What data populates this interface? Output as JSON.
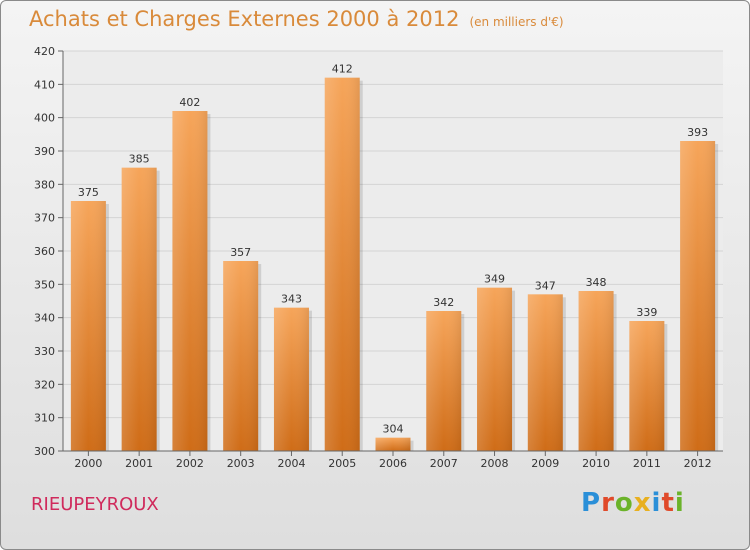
{
  "header": {
    "title": "Achats et Charges Externes 2000 à 2012",
    "subtitle": "(en milliers d'€)"
  },
  "footer": {
    "commune": "RIEUPEYROUX",
    "logo_letters": [
      "P",
      "r",
      "o",
      "x",
      "i",
      "t",
      "i"
    ],
    "logo_colors": [
      "#2a8fd8",
      "#e04a2a",
      "#6bb32a",
      "#e8b020",
      "#2a8fd8",
      "#e04a2a",
      "#6bb32a"
    ]
  },
  "chart_data": {
    "type": "bar",
    "title": "Achats et Charges Externes 2000 à 2012",
    "categories": [
      "2000",
      "2001",
      "2002",
      "2003",
      "2004",
      "2005",
      "2006",
      "2007",
      "2008",
      "2009",
      "2010",
      "2011",
      "2012"
    ],
    "values": [
      375,
      385,
      402,
      357,
      343,
      412,
      304,
      342,
      349,
      347,
      348,
      339,
      393
    ],
    "ylim": [
      300,
      420
    ],
    "yticks": [
      300,
      310,
      320,
      330,
      340,
      350,
      360,
      370,
      380,
      390,
      400,
      410,
      420
    ],
    "grid": true,
    "bar_color": "#ef8f3a",
    "xlabel": "",
    "ylabel": ""
  }
}
